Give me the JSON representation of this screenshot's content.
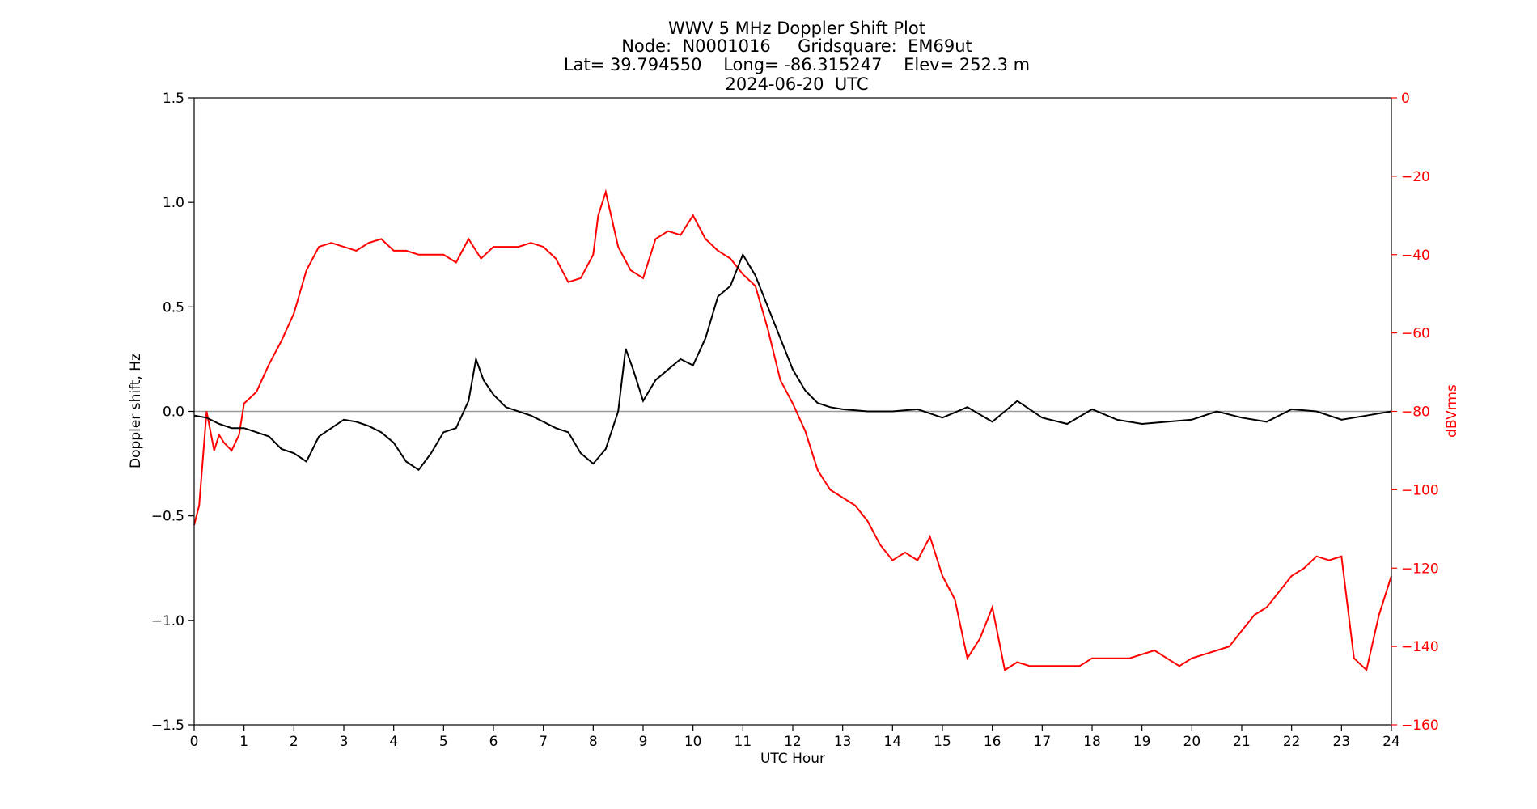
{
  "chart_data": {
    "type": "line",
    "title_lines": [
      "WWV 5 MHz Doppler Shift Plot",
      "Node:  N0001016     Gridsquare:  EM69ut",
      "Lat= 39.794550    Long= -86.315247    Elev= 252.3 m",
      "2024-06-20  UTC"
    ],
    "xlabel": "UTC Hour",
    "ylabel_left": "Doppler shift, Hz",
    "ylabel_right": "dBVrms",
    "xlim": [
      0,
      24
    ],
    "ylim_left": [
      -1.5,
      1.5
    ],
    "ylim_right": [
      -160,
      0
    ],
    "xticks": [
      0,
      1,
      2,
      3,
      4,
      5,
      6,
      7,
      8,
      9,
      10,
      11,
      12,
      13,
      14,
      15,
      16,
      17,
      18,
      19,
      20,
      21,
      22,
      23,
      24
    ],
    "yticks_left": [
      -1.5,
      -1.0,
      -0.5,
      0.0,
      0.5,
      1.0,
      1.5
    ],
    "yticks_right": [
      -160,
      -140,
      -120,
      -100,
      -80,
      -60,
      -40,
      -20,
      0
    ],
    "ytick_labels_left": [
      "−1.5",
      "−1.0",
      "−0.5",
      "0.0",
      "0.5",
      "1.0",
      "1.5"
    ],
    "ytick_labels_right": [
      "−160",
      "−140",
      "−120",
      "−100",
      "−80",
      "−60",
      "−40",
      "−20",
      "0"
    ],
    "zero_line": 0,
    "grid": false,
    "colors": {
      "doppler": "#000000",
      "power": "#ff0000",
      "zero_line": "#999999",
      "right_axis": "#ff0000"
    },
    "series": [
      {
        "axis": "left",
        "x": [
          0,
          0.25,
          0.5,
          0.75,
          1,
          1.25,
          1.5,
          1.75,
          2,
          2.25,
          2.5,
          2.75,
          3,
          3.25,
          3.5,
          3.75,
          4,
          4.25,
          4.5,
          4.75,
          5,
          5.25,
          5.5,
          5.65,
          5.8,
          6,
          6.25,
          6.5,
          6.75,
          7,
          7.25,
          7.5,
          7.75,
          8,
          8.25,
          8.5,
          8.65,
          8.8,
          9,
          9.25,
          9.5,
          9.75,
          10,
          10.25,
          10.5,
          10.75,
          11,
          11.25,
          11.5,
          11.75,
          12,
          12.25,
          12.5,
          12.75,
          13,
          13.5,
          14,
          14.5,
          15,
          15.5,
          16,
          16.5,
          17,
          17.5,
          18,
          18.5,
          19,
          19.5,
          20,
          20.5,
          21,
          21.5,
          22,
          22.5,
          23,
          23.5,
          24
        ],
        "y": [
          -0.02,
          -0.03,
          -0.06,
          -0.08,
          -0.08,
          -0.1,
          -0.12,
          -0.18,
          -0.2,
          -0.24,
          -0.12,
          -0.08,
          -0.04,
          -0.05,
          -0.07,
          -0.1,
          -0.15,
          -0.24,
          -0.28,
          -0.2,
          -0.1,
          -0.08,
          0.05,
          0.25,
          0.15,
          0.08,
          0.02,
          0,
          -0.02,
          -0.05,
          -0.08,
          -0.1,
          -0.2,
          -0.25,
          -0.18,
          0.0,
          0.3,
          0.2,
          0.05,
          0.15,
          0.2,
          0.25,
          0.22,
          0.35,
          0.55,
          0.6,
          0.75,
          0.65,
          0.5,
          0.35,
          0.2,
          0.1,
          0.04,
          0.02,
          0.01,
          0.0,
          0.0,
          0.01,
          -0.03,
          0.02,
          -0.05,
          0.05,
          -0.03,
          -0.06,
          0.01,
          -0.04,
          -0.06,
          -0.05,
          -0.04,
          0.0,
          -0.03,
          -0.05,
          0.01,
          0.0,
          -0.04,
          -0.02,
          0.0
        ]
      },
      {
        "axis": "right",
        "x": [
          0,
          0.1,
          0.25,
          0.4,
          0.5,
          0.6,
          0.75,
          0.9,
          1,
          1.25,
          1.5,
          1.75,
          2,
          2.25,
          2.5,
          2.75,
          3,
          3.25,
          3.5,
          3.75,
          4,
          4.25,
          4.5,
          4.75,
          5,
          5.25,
          5.5,
          5.75,
          6,
          6.25,
          6.5,
          6.75,
          7,
          7.25,
          7.5,
          7.75,
          8,
          8.1,
          8.25,
          8.5,
          8.75,
          9,
          9.25,
          9.5,
          9.75,
          10,
          10.25,
          10.5,
          10.75,
          11,
          11.25,
          11.5,
          11.75,
          12,
          12.25,
          12.5,
          12.75,
          13,
          13.25,
          13.5,
          13.75,
          14,
          14.25,
          14.5,
          14.75,
          15,
          15.25,
          15.5,
          15.75,
          16,
          16.25,
          16.5,
          16.75,
          17,
          17.25,
          17.5,
          17.75,
          18,
          18.25,
          18.5,
          18.75,
          19,
          19.25,
          19.5,
          19.75,
          20,
          20.25,
          20.5,
          20.75,
          21,
          21.25,
          21.5,
          21.75,
          22,
          22.25,
          22.5,
          22.75,
          23,
          23.25,
          23.5,
          23.75,
          24
        ],
        "y": [
          -109,
          -104,
          -80,
          -90,
          -86,
          -88,
          -90,
          -86,
          -78,
          -75,
          -68,
          -62,
          -55,
          -44,
          -38,
          -37,
          -38,
          -39,
          -37,
          -36,
          -39,
          -39,
          -40,
          -40,
          -40,
          -42,
          -36,
          -41,
          -38,
          -38,
          -38,
          -37,
          -38,
          -41,
          -47,
          -46,
          -40,
          -30,
          -24,
          -38,
          -44,
          -46,
          -36,
          -34,
          -35,
          -30,
          -36,
          -39,
          -41,
          -45,
          -48,
          -59,
          -72,
          -78,
          -85,
          -95,
          -100,
          -102,
          -104,
          -108,
          -114,
          -118,
          -116,
          -118,
          -112,
          -122,
          -128,
          -143,
          -138,
          -130,
          -146,
          -144,
          -145,
          -145,
          -145,
          -145,
          -145,
          -143,
          -143,
          -143,
          -143,
          -142,
          -141,
          -143,
          -145,
          -143,
          -142,
          -141,
          -140,
          -136,
          -132,
          -130,
          -126,
          -122,
          -120,
          -117,
          -118,
          -117,
          -143,
          -146,
          -132,
          -122
        ]
      }
    ]
  }
}
